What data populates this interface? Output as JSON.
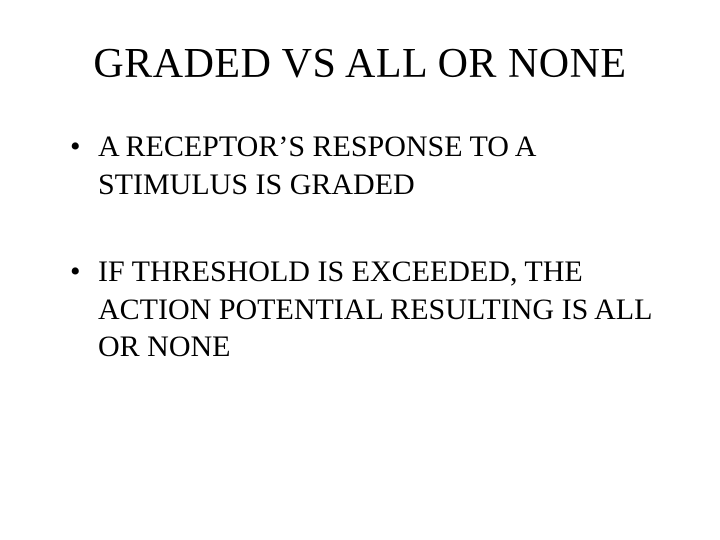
{
  "slide": {
    "title": "GRADED VS ALL OR NONE",
    "bullets": [
      "A RECEPTOR’S RESPONSE TO A STIMULUS IS GRADED",
      "IF THRESHOLD IS EXCEEDED, THE ACTION POTENTIAL RESULTING IS ALL OR NONE"
    ],
    "title_fontsize": 42,
    "body_fontsize": 30,
    "font_family": "Times New Roman",
    "text_color": "#000000",
    "background_color": "#ffffff"
  }
}
